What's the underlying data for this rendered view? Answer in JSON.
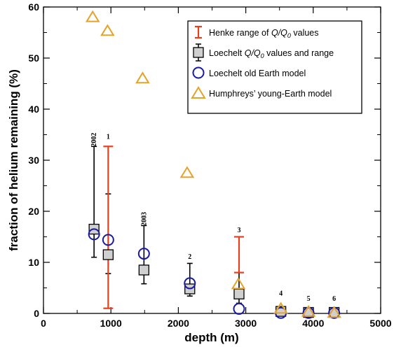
{
  "chart_data": {
    "type": "scatter",
    "xlabel": "depth  (m)",
    "ylabel": "fraction of helium remaining  (%)",
    "xlim": [
      0,
      5000
    ],
    "ylim": [
      0,
      60
    ],
    "x_ticks": [
      0,
      1000,
      2000,
      3000,
      4000,
      5000
    ],
    "x_tick_labels": [
      "0",
      "1000",
      "2000",
      "3000",
      "4000",
      "5000"
    ],
    "y_ticks": [
      0,
      10,
      20,
      30,
      40,
      50,
      60
    ],
    "y_tick_labels": [
      "0",
      "10",
      "20",
      "30",
      "40",
      "50",
      "60"
    ],
    "grid": false,
    "legend_position": "top-right",
    "legend": [
      {
        "text": "Henke range of ",
        "italic": "Q/Q",
        "sub": "0",
        "after": " values",
        "marker": "errorbar",
        "color": "#e8401c"
      },
      {
        "text": "Loechelt ",
        "italic": "Q/Q",
        "sub": "0",
        "after": " values and range",
        "marker": "square",
        "color": "#000000"
      },
      {
        "text": "Loechelt old Earth model",
        "italic": "",
        "sub": "",
        "after": "",
        "marker": "circle",
        "color": "#1a1aa6"
      },
      {
        "text": "Humphreys’ young-Earth model",
        "italic": "",
        "sub": "",
        "after": "",
        "marker": "triangle",
        "color": "#e3a32a"
      }
    ],
    "series": [
      {
        "name": "Henke range of Q/Q0 values",
        "marker": "errorbar",
        "color": "#e8401c",
        "points": [
          {
            "x": 960,
            "low": 1.0,
            "high": 32.7
          },
          {
            "x": 2900,
            "low": 8.0,
            "high": 15.0
          },
          {
            "x": 3520,
            "low": 0.3,
            "high": 0.8
          },
          {
            "x": 3930,
            "low": 0.1,
            "high": 0.5
          },
          {
            "x": 4310,
            "low": 0.1,
            "high": 0.4
          }
        ]
      },
      {
        "name": "Loechelt Q/Q0 values and range",
        "marker": "square",
        "color": "#000000",
        "points": [
          {
            "x": 750,
            "y": 16.5,
            "low": 11.0,
            "high": 32.7
          },
          {
            "x": 960,
            "y": 11.5,
            "low": 7.8,
            "high": 23.4
          },
          {
            "x": 1490,
            "y": 8.5,
            "low": 5.8,
            "high": 17.2
          },
          {
            "x": 2170,
            "y": 4.8,
            "low": 3.4,
            "high": 9.8
          },
          {
            "x": 2900,
            "y": 3.8,
            "low": 2.0,
            "high": 8.0
          },
          {
            "x": 3520,
            "y": 0.4,
            "low": 0.2,
            "high": 1.2
          },
          {
            "x": 3930,
            "y": 0.2,
            "low": 0.1,
            "high": 0.6
          },
          {
            "x": 4310,
            "y": 0.2,
            "low": 0.1,
            "high": 0.5
          }
        ]
      },
      {
        "name": "Loechelt old Earth model",
        "marker": "circle",
        "color": "#1a1aa6",
        "points": [
          {
            "x": 750,
            "y": 15.5
          },
          {
            "x": 960,
            "y": 14.4
          },
          {
            "x": 1490,
            "y": 11.7
          },
          {
            "x": 2170,
            "y": 5.9
          },
          {
            "x": 2900,
            "y": 0.9
          },
          {
            "x": 3520,
            "y": 0.1
          },
          {
            "x": 3930,
            "y": 0.1
          },
          {
            "x": 4310,
            "y": 0.1
          }
        ]
      },
      {
        "name": "Humphreys’ young-Earth model",
        "marker": "triangle",
        "color": "#e3a32a",
        "points": [
          {
            "x": 730,
            "y": 58.0
          },
          {
            "x": 950,
            "y": 55.3
          },
          {
            "x": 1470,
            "y": 46.0
          },
          {
            "x": 2130,
            "y": 27.5
          },
          {
            "x": 2890,
            "y": 5.7
          },
          {
            "x": 3520,
            "y": 0.9
          },
          {
            "x": 3930,
            "y": 0.3
          },
          {
            "x": 4310,
            "y": 0.1
          }
        ]
      }
    ],
    "annotations": [
      {
        "text": "2002",
        "x": 750,
        "y": 34.0,
        "rotate": true
      },
      {
        "text": "1",
        "x": 960,
        "y": 34.2,
        "rotate": false
      },
      {
        "text": "2003",
        "x": 1490,
        "y": 18.5,
        "rotate": true
      },
      {
        "text": "2",
        "x": 2170,
        "y": 10.7,
        "rotate": false
      },
      {
        "text": "3",
        "x": 2900,
        "y": 15.9,
        "rotate": false
      },
      {
        "text": "4",
        "x": 3520,
        "y": 3.5,
        "rotate": false
      },
      {
        "text": "5",
        "x": 3930,
        "y": 2.5,
        "rotate": false
      },
      {
        "text": "6",
        "x": 4310,
        "y": 2.5,
        "rotate": false
      }
    ]
  }
}
